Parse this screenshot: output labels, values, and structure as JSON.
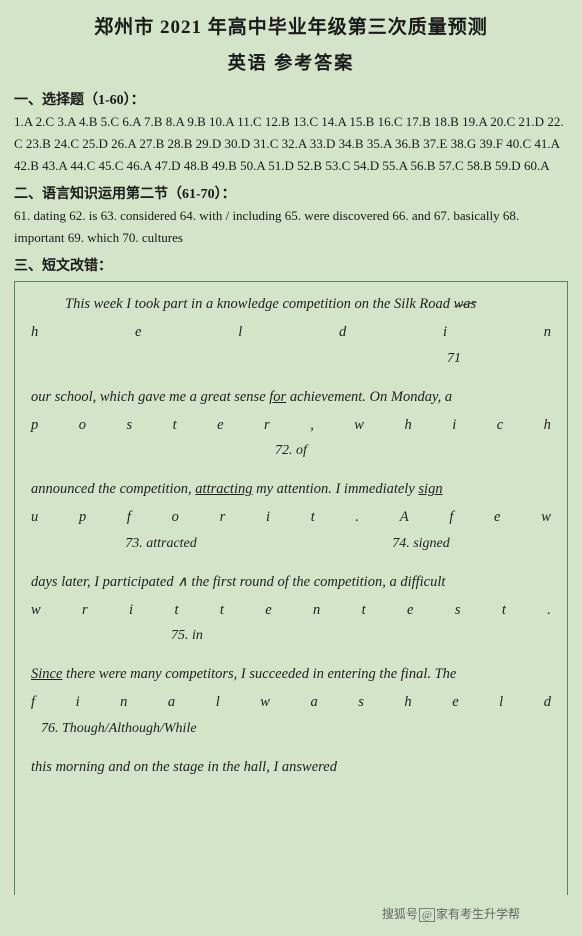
{
  "title_line1": "郑州市 2021 年高中毕业年级第三次质量预测",
  "title_line2": "英语  参考答案",
  "section1_heading": "一、选择题（1-60）：",
  "mc_answers": "1.A 2.C 3.A 4.B 5.C 6.A 7.B 8.A 9.B 10.A 11.C 12.B 13.C 14.A 15.B 16.C 17.B 18.B 19.A 20.C 21.D 22.C 23.B 24.C 25.D 26.A 27.B 28.B 29.D 30.D 31.C 32.A 33.D 34.B 35.A 36.B 37.E 38.G 39.F 40.C 41.A 42.B 43.A 44.C 45.C 46.A 47.D 48.B 49.B 50.A 51.D 52.B 53.C 54.D 55.A 56.B 57.C 58.B 59.D 60.A",
  "section2_heading": "二、语言知识运用第二节（61-70）：",
  "fill_answers": "61. dating 62. is 63. considered 64. with / including 65. were discovered 66. and 67. basically 68. important 69. which 70. cultures",
  "section3_heading": "三、短文改错：",
  "essay": {
    "l1_a": "This week I took part in a knowledge competition on the Silk Road",
    "l1_b_word": "was",
    "row1_letters": [
      "h",
      "e",
      "l",
      "d",
      "i",
      "n"
    ],
    "corr1_num": "71",
    "l2_a": "our school, which gave me a great sense ",
    "l2_for": "for",
    "l2_b": " achievement. On Monday, a",
    "row2_letters": [
      "p",
      "o",
      "s",
      "t",
      "e",
      "r",
      ",",
      "w",
      "h",
      "i",
      "c",
      "h"
    ],
    "corr2": "72. of",
    "l3_a": "announced the competition, ",
    "l3_attracting": "attracting",
    "l3_b": " my attention. I immediately ",
    "l3_sign": "sign",
    "row3_letters": [
      "u",
      "p",
      "f",
      "o",
      "r",
      "i",
      "t",
      ".",
      "A",
      "f",
      "e",
      "w"
    ],
    "corr3a": "73. attracted",
    "corr3b": "74. signed",
    "l4": "days later, I participated  ∧  the first round of the competition, a difficult",
    "row4_letters": [
      "w",
      "r",
      "i",
      "t",
      "t",
      "e",
      "n",
      "t",
      "e",
      "s",
      "t",
      "."
    ],
    "corr4": "75. in",
    "l5_since": "Since",
    "l5_b": " there were many competitors, I succeeded in entering the final. The",
    "row5_letters": [
      "f",
      "i",
      "n",
      "a",
      "l",
      "w",
      "a",
      "s",
      "h",
      "e",
      "l",
      "d"
    ],
    "corr5": "76. Though/Although/While",
    "l6": "this morning and on the stage in the hall, I answered"
  },
  "watermark_a": "搜狐号",
  "watermark_b": "@",
  "watermark_c": "家有考生升学帮"
}
